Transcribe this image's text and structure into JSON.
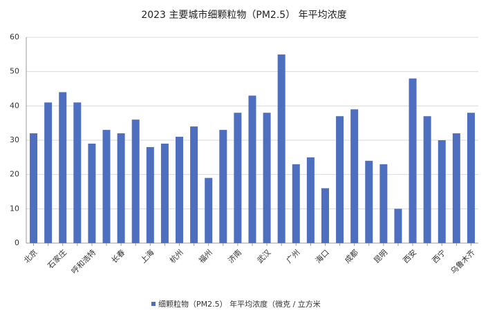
{
  "chart_data": {
    "type": "bar",
    "title": "2023 主要城市细颗粒物（PM2.5） 年平均浓度",
    "categories": [
      "北京",
      null,
      "石家庄",
      null,
      "呼和浩特",
      null,
      "长春",
      null,
      "上海",
      null,
      "杭州",
      null,
      "福州",
      null,
      "济南",
      null,
      "武汉",
      null,
      "广州",
      null,
      "海口",
      null,
      "成都",
      null,
      "昆明",
      null,
      "西安",
      null,
      "西宁",
      null,
      "乌鲁木齐"
    ],
    "series": [
      {
        "name": "细颗粒物（PM2.5） 年平均浓度（微克 / 立方米",
        "color": "#4e6fbf",
        "values": [
          32,
          41,
          44,
          41,
          29,
          33,
          32,
          36,
          28,
          29,
          31,
          34,
          19,
          33,
          38,
          43,
          38,
          55,
          23,
          25,
          16,
          37,
          39,
          24,
          23,
          10,
          48,
          37,
          30,
          32,
          38
        ]
      }
    ],
    "ylim": [
      0,
      60
    ],
    "yticks": [
      0,
      10,
      20,
      30,
      40,
      50,
      60
    ],
    "grid": true,
    "legend": "bottom"
  }
}
